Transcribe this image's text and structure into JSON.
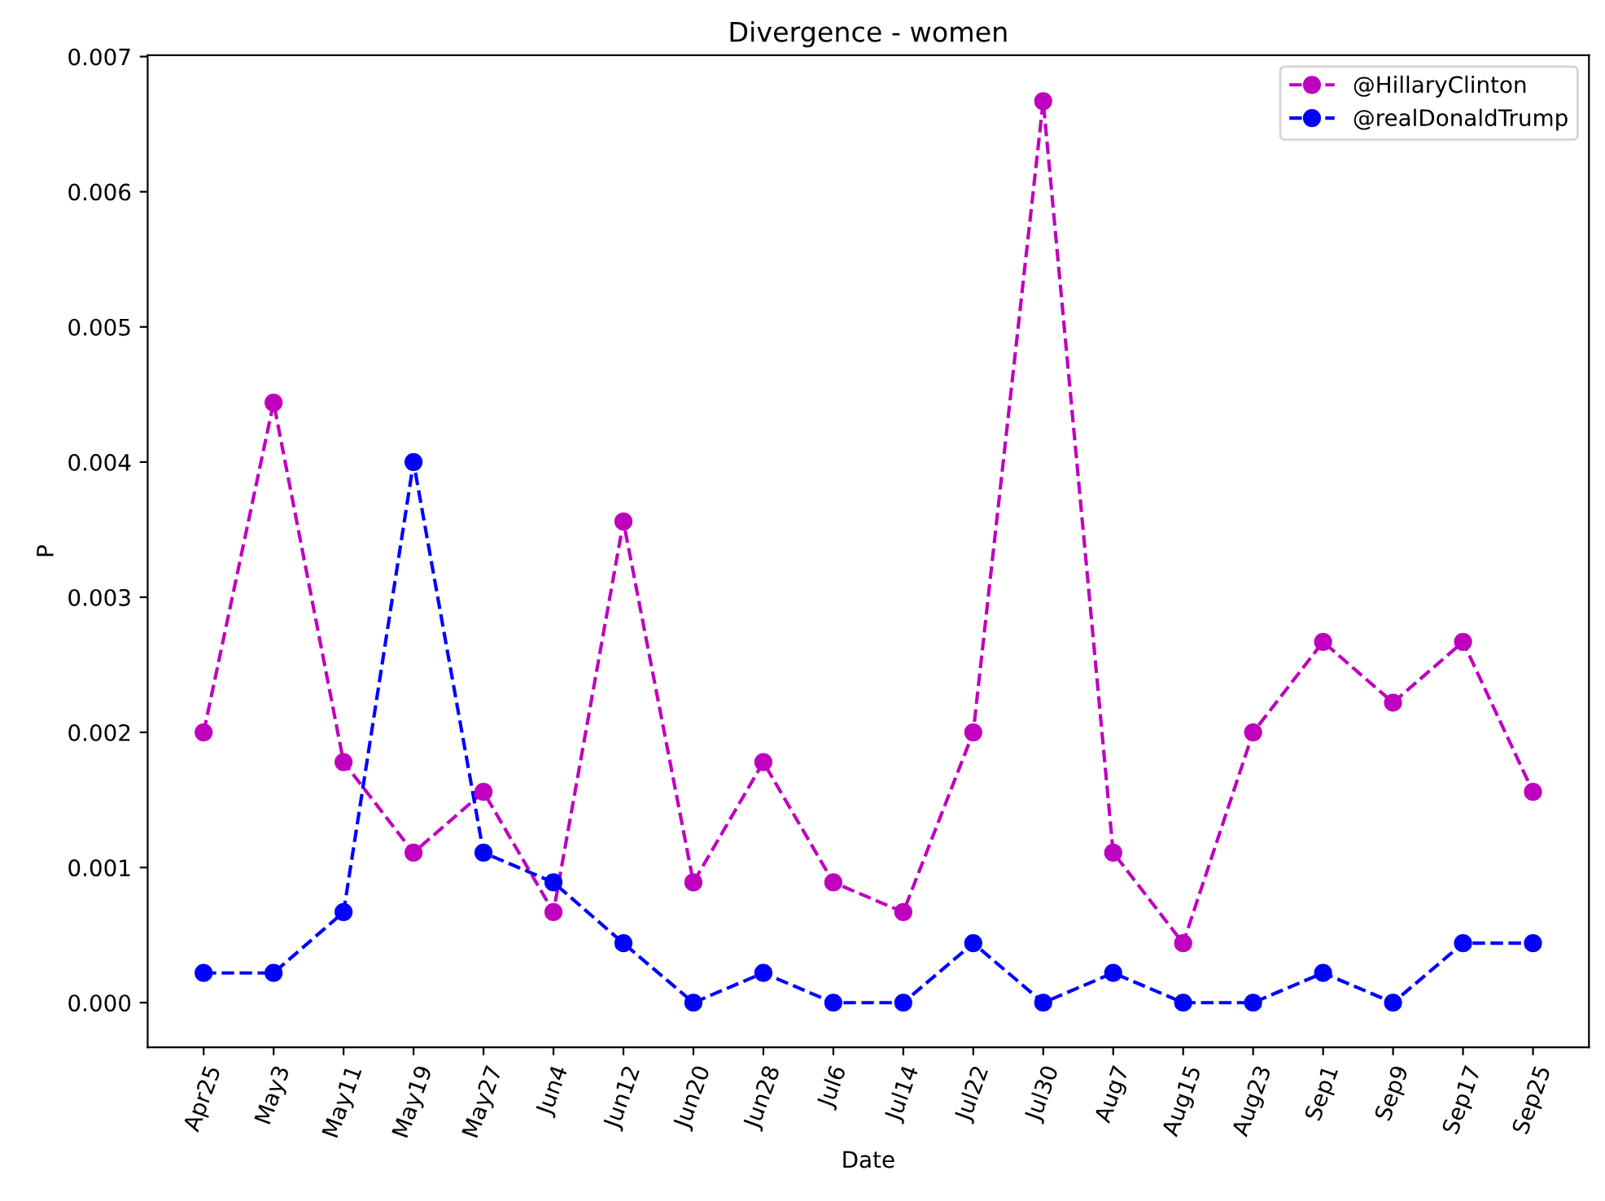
{
  "chart_data": {
    "type": "line",
    "title": "Divergence - women",
    "xlabel": "Date",
    "ylabel": "P",
    "categories": [
      "Apr25",
      "May3",
      "May11",
      "May19",
      "May27",
      "Jun4",
      "Jun12",
      "Jun20",
      "Jun28",
      "Jul6",
      "Jul14",
      "Jul22",
      "Jul30",
      "Aug7",
      "Aug15",
      "Aug23",
      "Sep1",
      "Sep9",
      "Sep17",
      "Sep25"
    ],
    "series": [
      {
        "name": "@HillaryClinton",
        "color": "#bf00bf",
        "values": [
          0.002,
          0.00444,
          0.00178,
          0.00111,
          0.00156,
          0.00067,
          0.00356,
          0.00089,
          0.00178,
          0.00089,
          0.00067,
          0.002,
          0.00667,
          0.00111,
          0.00044,
          0.002,
          0.00267,
          0.00222,
          0.00267,
          0.00156
        ]
      },
      {
        "name": "@realDonaldTrump",
        "color": "#0000ff",
        "values": [
          0.00022,
          0.00022,
          0.00067,
          0.004,
          0.00111,
          0.00089,
          0.00044,
          0,
          0.00022,
          0,
          0,
          0.00044,
          0,
          0.00022,
          0,
          0,
          0.00022,
          0,
          0.00044,
          0.00044
        ]
      }
    ],
    "ylim": [
      -0.00033,
      0.00701
    ],
    "yticks": [
      {
        "value": 0,
        "label": "0.000"
      },
      {
        "value": 0.001,
        "label": "0.001"
      },
      {
        "value": 0.002,
        "label": "0.002"
      },
      {
        "value": 0.003,
        "label": "0.003"
      },
      {
        "value": 0.004,
        "label": "0.004"
      },
      {
        "value": 0.005,
        "label": "0.005"
      },
      {
        "value": 0.006,
        "label": "0.006"
      },
      {
        "value": 0.007,
        "label": "0.007"
      }
    ],
    "marker": "circle",
    "line_style": "dashed",
    "legend": "top right",
    "grid": false
  }
}
